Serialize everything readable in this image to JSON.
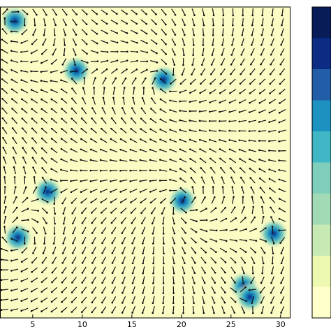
{
  "chart_data": {
    "type": "vortex-field",
    "xlim": [
      1.7,
      31
    ],
    "ylim": [
      0,
      31.3
    ],
    "xticks": [
      5,
      10,
      15,
      20,
      25,
      30
    ],
    "background": "#fbfbc4",
    "vortices": [
      {
        "x": 3.2,
        "y": 29.9,
        "charge": 1
      },
      {
        "x": 9.4,
        "y": 24.9,
        "charge": -1
      },
      {
        "x": 18.2,
        "y": 24.0,
        "charge": 1
      },
      {
        "x": 6.5,
        "y": 12.7,
        "charge": -1
      },
      {
        "x": 20.1,
        "y": 11.8,
        "charge": 1
      },
      {
        "x": 3.5,
        "y": 8.1,
        "charge": 1
      },
      {
        "x": 29.3,
        "y": 8.5,
        "charge": -1
      },
      {
        "x": 26.3,
        "y": 3.2,
        "charge": 1
      },
      {
        "x": 26.9,
        "y": 2.1,
        "charge": -1
      }
    ],
    "colorbar": [
      "#ffffcc",
      "#edf8b1",
      "#c7e9b4",
      "#a1dab4",
      "#7fcdbb",
      "#41b6c4",
      "#1d91c0",
      "#225ea8",
      "#0c2c84",
      "#081d58"
    ]
  }
}
